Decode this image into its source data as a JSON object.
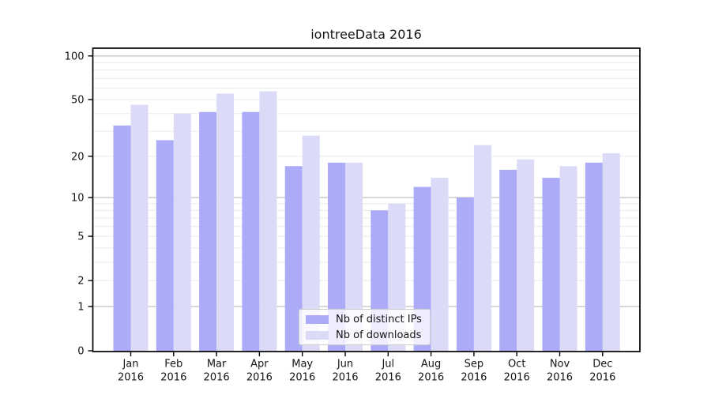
{
  "chart_data": {
    "type": "bar",
    "title": "iontreeData 2016",
    "categories": [
      "Jan 2016",
      "Feb 2016",
      "Mar 2016",
      "Apr 2016",
      "May 2016",
      "Jun 2016",
      "Jul 2016",
      "Aug 2016",
      "Sep 2016",
      "Oct 2016",
      "Nov 2016",
      "Dec 2016"
    ],
    "series": [
      {
        "name": "Nb of distinct IPs",
        "color": "#ababf8",
        "values": [
          33,
          26,
          41,
          41,
          17,
          18,
          8,
          12,
          10,
          16,
          14,
          18
        ]
      },
      {
        "name": "Nb of downloads",
        "color": "#dbdbf8",
        "values": [
          46,
          40,
          55,
          57,
          28,
          18,
          9,
          14,
          24,
          19,
          17,
          21
        ]
      }
    ],
    "xlabel": "",
    "ylabel": "",
    "yscale": "log1p",
    "yticks": [
      0,
      1,
      2,
      5,
      10,
      20,
      50,
      100
    ],
    "ylim": [
      0,
      112
    ],
    "grid": "horizontal: light minor lines at 2-9 steps, darker lines at 1, 10, 100",
    "legend_position": "lower center",
    "colors": {
      "major_grid": "#b9b9b9",
      "minor_grid": "#eaeaea",
      "frame": "#000000",
      "background": "#ffffff"
    }
  }
}
